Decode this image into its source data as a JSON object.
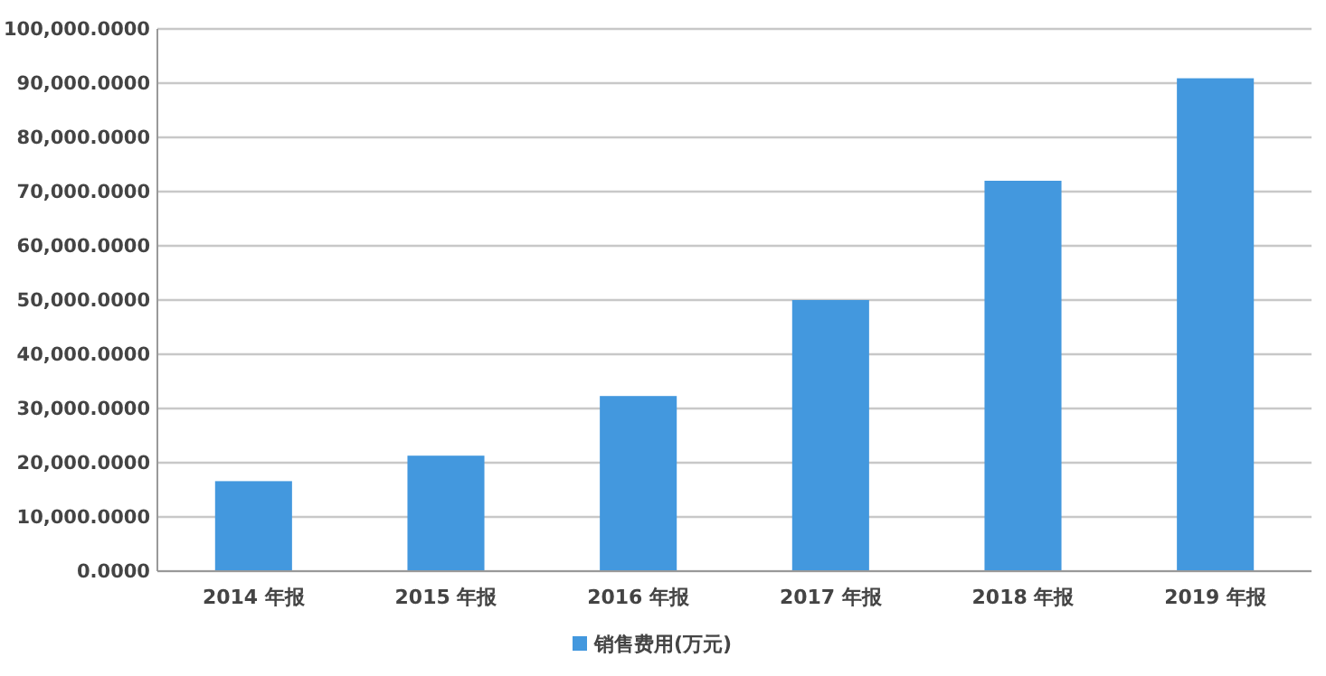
{
  "chart_data": {
    "type": "bar",
    "categories": [
      "2014 年报",
      "2015 年报",
      "2016 年报",
      "2017 年报",
      "2018 年报",
      "2019 年报"
    ],
    "series": [
      {
        "name": "销售费用(万元)",
        "color": "#4398de",
        "values": [
          16600,
          21300,
          32300,
          50000,
          72000,
          90900
        ]
      }
    ],
    "ylim": [
      0,
      100000
    ],
    "yticks": [
      {
        "value": 0,
        "label": "0.0000"
      },
      {
        "value": 10000,
        "label": "10,000.0000"
      },
      {
        "value": 20000,
        "label": "20,000.0000"
      },
      {
        "value": 30000,
        "label": "30,000.0000"
      },
      {
        "value": 40000,
        "label": "40,000.0000"
      },
      {
        "value": 50000,
        "label": "50,000.0000"
      },
      {
        "value": 60000,
        "label": "60,000.0000"
      },
      {
        "value": 70000,
        "label": "70,000.0000"
      },
      {
        "value": 80000,
        "label": "80,000.0000"
      },
      {
        "value": 90000,
        "label": "90,000.0000"
      },
      {
        "value": 100000,
        "label": "100,000.0000"
      }
    ],
    "grid": "y",
    "legend": "bottom"
  }
}
